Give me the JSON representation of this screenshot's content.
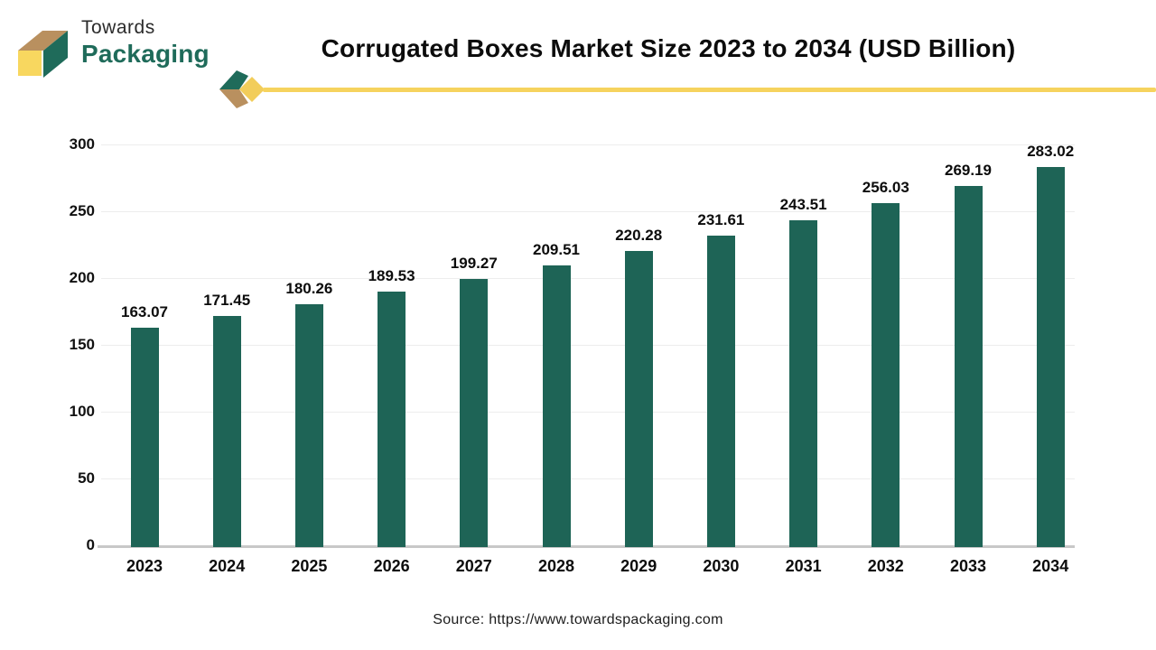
{
  "logo": {
    "line1": "Towards",
    "line2": "Packaging"
  },
  "header": {
    "title": "Corrugated Boxes Market Size 2023 to 2034 (USD Billion)"
  },
  "footer": {
    "source": "Source: https://www.towardspackaging.com"
  },
  "colors": {
    "bar": "#1E6456",
    "accent_yellow": "#F6D35E",
    "logo_yellow": "#F8D75F",
    "logo_tan": "#B9905F",
    "logo_green": "#1F6B5A",
    "gridline": "#EDEDED",
    "baseline": "#C8C8C8",
    "title_text": "#0C0C0C"
  },
  "chart_data": {
    "type": "bar",
    "title": "Corrugated Boxes Market Size 2023 to 2034 (USD Billion)",
    "categories": [
      "2023",
      "2024",
      "2025",
      "2026",
      "2027",
      "2028",
      "2029",
      "2030",
      "2031",
      "2032",
      "2033",
      "2034"
    ],
    "values": [
      163.07,
      171.45,
      180.26,
      189.53,
      199.27,
      209.51,
      220.28,
      231.61,
      243.51,
      256.03,
      269.19,
      283.02
    ],
    "unit": "USD Billion",
    "xlabel": "",
    "ylabel": "",
    "ylim": [
      0,
      300
    ],
    "yticks": [
      0,
      50,
      100,
      150,
      200,
      250,
      300
    ],
    "grid": true,
    "legend": "none",
    "value_labels": true,
    "value_label_decimals": 2
  }
}
